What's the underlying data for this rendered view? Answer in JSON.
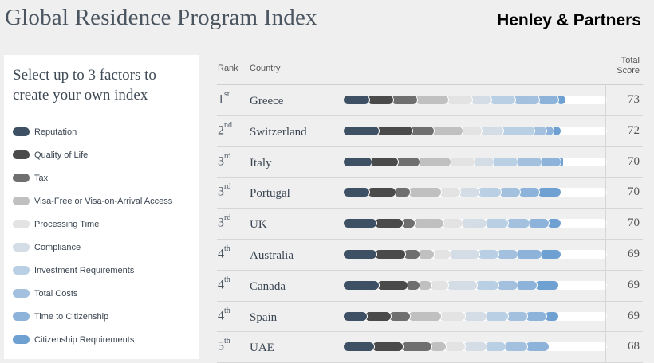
{
  "page": {
    "title": "Global Residence Program Index",
    "brand": "Henley & Partners"
  },
  "sidebar": {
    "heading": "Select up to 3 factors to create your own index",
    "factors": [
      {
        "label": "Reputation",
        "color": "#3d5064"
      },
      {
        "label": "Quality of Life",
        "color": "#4a4a4a"
      },
      {
        "label": "Tax",
        "color": "#6f6f6f"
      },
      {
        "label": "Visa-Free or Visa-on-Arrival Access",
        "color": "#c0c0c0"
      },
      {
        "label": "Processing Time",
        "color": "#e3e3e3"
      },
      {
        "label": "Compliance",
        "color": "#d4dde6"
      },
      {
        "label": "Investment Requirements",
        "color": "#b9cfe3"
      },
      {
        "label": "Total Costs",
        "color": "#a3c1de"
      },
      {
        "label": "Time to Citizenship",
        "color": "#8db3da"
      },
      {
        "label": "Citizenship Requirements",
        "color": "#6fa0d2"
      }
    ]
  },
  "table": {
    "headers": {
      "rank": "Rank",
      "country": "Country",
      "score": "Total Score"
    },
    "rows": [
      {
        "rank": "1",
        "suffix": "st",
        "country": "Greece",
        "score": "73",
        "segments": [
          10,
          10,
          10,
          13,
          10,
          8,
          10,
          10,
          8,
          3
        ]
      },
      {
        "rank": "2",
        "suffix": "nd",
        "country": "Switzerland",
        "score": "72",
        "segments": [
          14,
          14,
          9,
          12,
          8,
          9,
          13,
          5,
          3,
          3
        ]
      },
      {
        "rank": "3",
        "suffix": "rd",
        "country": "Italy",
        "score": "70",
        "segments": [
          11,
          11,
          9,
          13,
          10,
          8,
          10,
          10,
          8,
          1
        ]
      },
      {
        "rank": "3",
        "suffix": "rd",
        "country": "Portugal",
        "score": "70",
        "segments": [
          10,
          11,
          6,
          13,
          8,
          8,
          9,
          8,
          8,
          9
        ]
      },
      {
        "rank": "3",
        "suffix": "rd",
        "country": "UK",
        "score": "70",
        "segments": [
          13,
          11,
          5,
          12,
          8,
          10,
          9,
          9,
          8,
          5
        ]
      },
      {
        "rank": "4",
        "suffix": "th",
        "country": "Australia",
        "score": "69",
        "segments": [
          13,
          12,
          6,
          6,
          7,
          12,
          8,
          8,
          10,
          8
        ]
      },
      {
        "rank": "4",
        "suffix": "th",
        "country": "Canada",
        "score": "69",
        "segments": [
          14,
          12,
          5,
          5,
          7,
          12,
          9,
          8,
          8,
          9
        ]
      },
      {
        "rank": "4",
        "suffix": "th",
        "country": "Spain",
        "score": "69",
        "segments": [
          9,
          10,
          8,
          13,
          10,
          9,
          9,
          8,
          8,
          5
        ]
      },
      {
        "rank": "5",
        "suffix": "th",
        "country": "UAE",
        "score": "68",
        "segments": [
          12,
          12,
          12,
          6,
          8,
          9,
          8,
          9,
          9,
          0
        ]
      }
    ]
  }
}
